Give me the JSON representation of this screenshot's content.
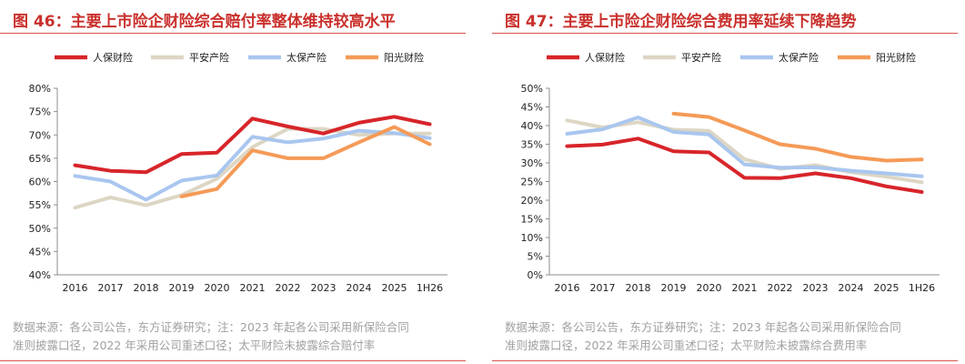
{
  "colors": {
    "title": "#c9302c",
    "series": [
      "#d7252a",
      "#ddd6c4",
      "#a9c6ef",
      "#f59a57"
    ],
    "axis_text": "#222222",
    "note": "#a0a0a0"
  },
  "charts": [
    {
      "title": "图 46：主要上市险企财险综合赔付率整体维持较高水平",
      "note_line1": "数据来源：各公司公告，东方证券研究；注：2023 年起各公司采用新保险合同",
      "note_line2": "准则披露口径，2022 年采用公司重述口径；太平财险未披露综合赔付率"
    },
    {
      "title": "图 47：主要上市险企财险综合费用率延续下降趋势",
      "note_line1": "数据来源：各公司公告，东方证券研究；注：2023 年起各公司采用新保险合同",
      "note_line2": "准则披露口径，2022 年采用公司重述口径；太平财险未披露综合费用率"
    }
  ],
  "chart_data": [
    {
      "type": "line",
      "x": [
        "2016",
        "2017",
        "2018",
        "2019",
        "2020",
        "2021",
        "2022",
        "2023",
        "2024",
        "2025",
        "1H26"
      ],
      "ylim": [
        40,
        80
      ],
      "yticks": [
        "40%",
        "45%",
        "50%",
        "55%",
        "60%",
        "65%",
        "70%",
        "75%",
        "80%"
      ],
      "legend_position": "top",
      "grid": false,
      "series": [
        {
          "name": "人保财险",
          "values": [
            63.5,
            62.3,
            62.0,
            65.9,
            66.2,
            73.5,
            71.8,
            70.3,
            72.6,
            73.9,
            72.3
          ]
        },
        {
          "name": "平安产险",
          "values": [
            54.4,
            56.6,
            54.9,
            57.1,
            60.6,
            67.4,
            71.3,
            71.3,
            70.0,
            70.3,
            70.3
          ]
        },
        {
          "name": "太保产险",
          "values": [
            61.2,
            60.0,
            56.1,
            60.2,
            61.3,
            69.6,
            68.4,
            69.2,
            70.9,
            70.4,
            69.3
          ]
        },
        {
          "name": "阳光财险",
          "values": [
            null,
            null,
            null,
            56.8,
            58.4,
            66.7,
            65.0,
            65.0,
            68.4,
            71.7,
            68.0
          ]
        }
      ]
    },
    {
      "type": "line",
      "x": [
        "2016",
        "2017",
        "2018",
        "2019",
        "2020",
        "2021",
        "2022",
        "2023",
        "2024",
        "2025",
        "1H26"
      ],
      "ylim": [
        0,
        50
      ],
      "yticks": [
        "0%",
        "5%",
        "10%",
        "15%",
        "20%",
        "25%",
        "30%",
        "35%",
        "40%",
        "45%",
        "50%"
      ],
      "legend_position": "top",
      "grid": false,
      "series": [
        {
          "name": "人保财险",
          "values": [
            34.5,
            34.9,
            36.5,
            33.1,
            32.8,
            26.0,
            25.9,
            27.2,
            25.9,
            23.7,
            22.2
          ]
        },
        {
          "name": "平安产险",
          "values": [
            41.4,
            39.5,
            40.9,
            38.9,
            38.6,
            31.0,
            28.4,
            29.4,
            27.5,
            26.3,
            24.8
          ]
        },
        {
          "name": "太保产险",
          "values": [
            37.8,
            39.0,
            42.2,
            38.3,
            37.6,
            29.6,
            28.7,
            28.8,
            27.9,
            27.2,
            26.4
          ]
        },
        {
          "name": "阳光财险",
          "values": [
            null,
            null,
            null,
            43.2,
            42.3,
            38.7,
            35.0,
            33.8,
            31.6,
            30.6,
            30.9
          ]
        }
      ]
    }
  ]
}
